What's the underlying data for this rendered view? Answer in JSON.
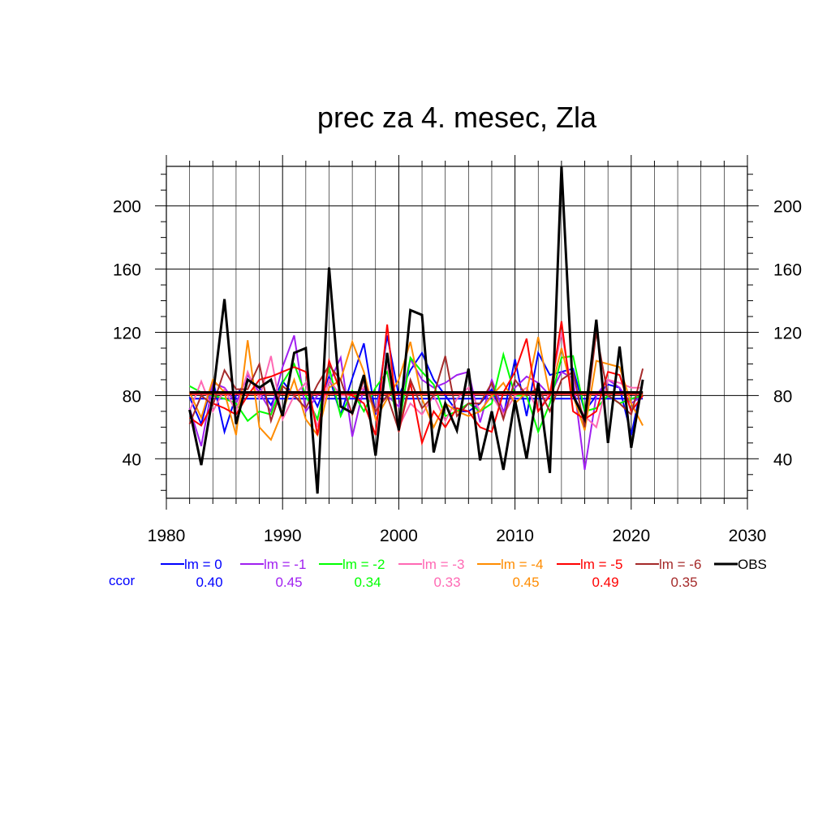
{
  "chart_data": {
    "type": "line",
    "title": "prec za 4. mesec, Zla",
    "xlabel": "",
    "ylabel": "",
    "xlim": [
      1980,
      2030
    ],
    "ylim": [
      15,
      225
    ],
    "x_ticks": [
      1980,
      1990,
      2000,
      2010,
      2020,
      2030
    ],
    "y_ticks": [
      40,
      80,
      120,
      160,
      200
    ],
    "grid": true,
    "legend_position": "bottom",
    "ccor_label": "ccor",
    "x": [
      1982,
      1983,
      1984,
      1985,
      1986,
      1987,
      1988,
      1989,
      1990,
      1991,
      1992,
      1993,
      1994,
      1995,
      1996,
      1997,
      1998,
      1999,
      2000,
      2001,
      2002,
      2003,
      2004,
      2005,
      2006,
      2007,
      2008,
      2009,
      2010,
      2011,
      2012,
      2013,
      2014,
      2015,
      2016,
      2017,
      2018,
      2019,
      2020,
      2021
    ],
    "series": [
      {
        "name": "lm = 0",
        "color": "#0000ff",
        "ccor": "0.40",
        "mean": 78,
        "values": [
          79,
          62,
          90,
          57,
          80,
          90,
          85,
          74,
          89,
          80,
          88,
          73,
          92,
          68,
          91,
          113,
          68,
          118,
          80,
          96,
          107,
          90,
          80,
          70,
          70,
          75,
          84,
          67,
          103,
          67,
          107,
          93,
          95,
          97,
          70,
          80,
          87,
          85,
          55,
          90
        ]
      },
      {
        "name": "lm = -1",
        "color": "#a020f0",
        "ccor": "0.45",
        "mean": 81,
        "values": [
          72,
          48,
          88,
          85,
          75,
          93,
          82,
          70,
          98,
          118,
          70,
          80,
          88,
          104,
          54,
          85,
          70,
          80,
          73,
          103,
          90,
          85,
          88,
          93,
          95,
          63,
          90,
          70,
          85,
          92,
          88,
          80,
          95,
          91,
          33,
          80,
          90,
          85,
          75,
          80
        ]
      },
      {
        "name": "lm = -2",
        "color": "#00ff00",
        "ccor": "0.34",
        "mean": 82,
        "values": [
          86,
          82,
          80,
          78,
          75,
          64,
          70,
          68,
          88,
          100,
          80,
          65,
          98,
          67,
          83,
          70,
          85,
          95,
          60,
          104,
          95,
          87,
          67,
          70,
          75,
          70,
          75,
          106,
          80,
          80,
          57,
          75,
          104,
          105,
          70,
          72,
          80,
          75,
          78,
          80
        ]
      },
      {
        "name": "lm = -3",
        "color": "#ff69b4",
        "ccor": "0.33",
        "mean": 81,
        "values": [
          70,
          89,
          70,
          84,
          70,
          95,
          78,
          105,
          65,
          80,
          88,
          60,
          90,
          80,
          80,
          85,
          70,
          100,
          60,
          75,
          68,
          80,
          64,
          78,
          85,
          70,
          80,
          68,
          80,
          85,
          70,
          82,
          120,
          80,
          67,
          60,
          90,
          88,
          85,
          85
        ]
      },
      {
        "name": "lm = -4",
        "color": "#ff8c00",
        "ccor": "0.45",
        "mean": 82,
        "values": [
          82,
          66,
          90,
          82,
          55,
          115,
          60,
          52,
          70,
          90,
          65,
          55,
          85,
          90,
          114,
          95,
          65,
          78,
          90,
          114,
          78,
          60,
          75,
          70,
          67,
          70,
          80,
          88,
          75,
          82,
          117,
          80,
          110,
          80,
          58,
          102,
          100,
          98,
          75,
          61
        ]
      },
      {
        "name": "lm = -5",
        "color": "#ff0000",
        "ccor": "0.49",
        "mean": 81,
        "values": [
          66,
          61,
          75,
          72,
          68,
          80,
          90,
          92,
          95,
          98,
          95,
          55,
          102,
          82,
          80,
          75,
          55,
          125,
          57,
          88,
          50,
          70,
          60,
          72,
          70,
          60,
          57,
          82,
          95,
          116,
          70,
          80,
          127,
          70,
          65,
          70,
          95,
          93,
          70,
          80
        ]
      },
      {
        "name": "lm = -6",
        "color": "#a52a2a",
        "ccor": "0.35",
        "mean": 82,
        "values": [
          62,
          80,
          74,
          96,
          84,
          84,
          100,
          64,
          86,
          80,
          72,
          87,
          99,
          90,
          68,
          90,
          70,
          80,
          58,
          90,
          72,
          80,
          105,
          67,
          75,
          75,
          88,
          65,
          90,
          80,
          85,
          70,
          90,
          95,
          60,
          120,
          80,
          75,
          68,
          97
        ]
      },
      {
        "name": "OBS",
        "color": "#000000",
        "ccor": "",
        "mean": 82,
        "values": [
          71,
          36,
          80,
          141,
          62,
          90,
          85,
          90,
          67,
          107,
          110,
          18,
          161,
          73,
          69,
          93,
          42,
          107,
          58,
          134,
          131,
          44,
          75,
          58,
          97,
          39,
          70,
          33,
          77,
          40,
          88,
          31,
          225,
          80,
          65,
          128,
          50,
          111,
          47,
          90
        ]
      }
    ]
  }
}
